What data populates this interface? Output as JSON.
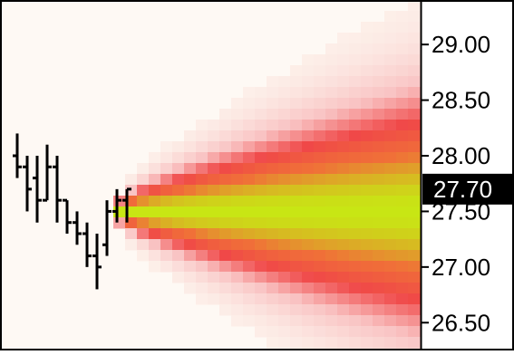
{
  "chart_data": {
    "type": "ohlc",
    "title": "",
    "xlabel": "",
    "ylabel": "",
    "ylim": [
      26.25,
      29.4
    ],
    "y_ticks": [
      29.0,
      28.5,
      28.0,
      27.5,
      27.0,
      26.5
    ],
    "y_tick_labels": [
      "29.00",
      "28.50",
      "28.00",
      "27.50",
      "27.00",
      "26.50"
    ],
    "axis_position": "right",
    "grid": false,
    "legend": "none",
    "last_price": 27.7,
    "last_price_label": "27.70",
    "bars": [
      {
        "high": 28.2,
        "low": 27.8,
        "open": 28.0,
        "close": 27.9
      },
      {
        "high": 28.0,
        "low": 27.5,
        "open": 27.9,
        "close": 27.7
      },
      {
        "high": 28.0,
        "low": 27.4,
        "open": 27.8,
        "close": 27.6
      },
      {
        "high": 28.1,
        "low": 27.6,
        "open": 27.6,
        "close": 27.9
      },
      {
        "high": 28.0,
        "low": 27.4,
        "open": 27.9,
        "close": 27.6
      },
      {
        "high": 27.6,
        "low": 27.3,
        "open": 27.6,
        "close": 27.4
      },
      {
        "high": 27.5,
        "low": 27.2,
        "open": 27.4,
        "close": 27.3
      },
      {
        "high": 27.4,
        "low": 27.0,
        "open": 27.3,
        "close": 27.1
      },
      {
        "high": 27.3,
        "low": 26.8,
        "open": 27.1,
        "close": 27.0
      },
      {
        "high": 27.6,
        "low": 27.1,
        "open": 27.2,
        "close": 27.5
      },
      {
        "high": 27.7,
        "low": 27.4,
        "open": 27.5,
        "close": 27.6
      },
      {
        "high": 27.7,
        "low": 27.4,
        "open": 27.6,
        "close": 27.7
      }
    ],
    "forecast": {
      "center": 27.5,
      "spread_start": 0.12,
      "spread_end": 1.25,
      "color_scale": [
        "#fdf3ec",
        "#f9c3c3",
        "#f04848",
        "#f07038",
        "#c8e614"
      ]
    },
    "colors": {
      "background": "#fef9f4",
      "axis_background": "#ffffff",
      "axis_line": "#000000",
      "bar": "#000000",
      "price_label_bg": "#000000",
      "price_label_text": "#ffffff"
    }
  }
}
